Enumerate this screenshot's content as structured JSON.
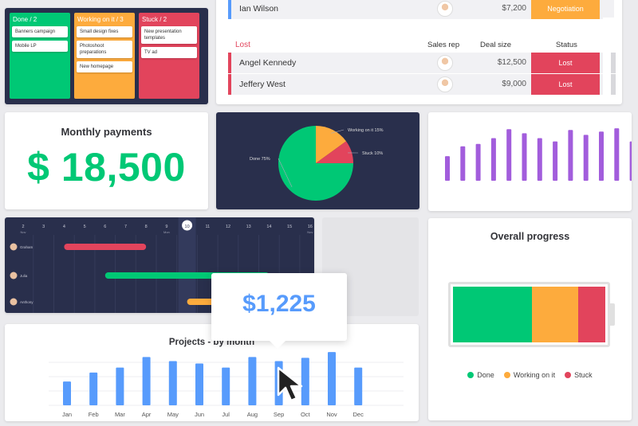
{
  "kanban": {
    "columns": [
      {
        "title": "Done / 2",
        "color": "#00c875",
        "items": [
          "Banners campaign",
          "Mobile LP"
        ]
      },
      {
        "title": "Working on it / 3",
        "color": "#fdab3d",
        "items": [
          "Small design fixes",
          "Photoshoot preparations",
          "New homepage"
        ]
      },
      {
        "title": "Stuck / 2",
        "color": "#e2445c",
        "items": [
          "New presentation templates",
          "TV ad"
        ]
      }
    ]
  },
  "deals": {
    "top_row": {
      "name": "Ian Wilson",
      "size": "$7,200",
      "status": "Negotiation",
      "status_color": "#fdab3d",
      "stripe": "#579bfc"
    },
    "group_label": "Lost",
    "headers": {
      "rep": "Sales rep",
      "size": "Deal size",
      "status": "Status"
    },
    "rows": [
      {
        "name": "Angel Kennedy",
        "size": "$12,500",
        "status": "Lost"
      },
      {
        "name": "Jeffery West",
        "size": "$9,000",
        "status": "Lost"
      }
    ]
  },
  "payments": {
    "title": "Monthly payments",
    "amount": "$ 18,500"
  },
  "pie": {
    "chart_data": {
      "type": "pie",
      "slices": [
        {
          "label": "Done 75%",
          "value": 75,
          "color": "#00c875"
        },
        {
          "label": "Working on it 15%",
          "value": 15,
          "color": "#fdab3d"
        },
        {
          "label": "Stuck 10%",
          "value": 10,
          "color": "#e2445c"
        }
      ]
    }
  },
  "purple_chart": {
    "chart_data": {
      "type": "bar",
      "values": [
        30,
        42,
        45,
        52,
        63,
        58,
        52,
        48,
        62,
        56,
        60,
        64,
        48
      ],
      "color": "#a25ddc",
      "ylim": [
        0,
        70
      ]
    }
  },
  "gantt": {
    "dates": [
      {
        "day": "2",
        "sub": "Nov"
      },
      {
        "day": "3",
        "sub": ""
      },
      {
        "day": "4",
        "sub": ""
      },
      {
        "day": "5",
        "sub": ""
      },
      {
        "day": "6",
        "sub": ""
      },
      {
        "day": "7",
        "sub": ""
      },
      {
        "day": "8",
        "sub": ""
      },
      {
        "day": "9",
        "sub": "Mon"
      },
      {
        "day": "10",
        "sub": ""
      },
      {
        "day": "11",
        "sub": ""
      },
      {
        "day": "12",
        "sub": ""
      },
      {
        "day": "13",
        "sub": ""
      },
      {
        "day": "14",
        "sub": ""
      },
      {
        "day": "15",
        "sub": ""
      },
      {
        "day": "16",
        "sub": "Nov"
      }
    ],
    "today_index": 8,
    "people": [
      {
        "name": "Graham",
        "color": "#e2445c",
        "start": 2,
        "end": 6
      },
      {
        "name": "Julia",
        "color": "#00c875",
        "start": 4,
        "end": 12
      },
      {
        "name": "Anthony",
        "color": "#fdab3d",
        "start": 8,
        "end": 10
      }
    ]
  },
  "progress": {
    "title": "Overall progress",
    "segments": [
      {
        "label": "Done",
        "value": 52,
        "color": "#00c875"
      },
      {
        "label": "Working on it",
        "value": 30,
        "color": "#fdab3d"
      },
      {
        "label": "Stuck",
        "value": 18,
        "color": "#e2445c"
      }
    ]
  },
  "projects": {
    "title": "Projects - by month",
    "chart_data": {
      "type": "bar",
      "categories": [
        "Jan",
        "Feb",
        "Mar",
        "Apr",
        "May",
        "Jun",
        "Jul",
        "Aug",
        "Sep",
        "Oct",
        "Nov",
        "Dec"
      ],
      "values": [
        29,
        40,
        46,
        59,
        54,
        51,
        46,
        59,
        54,
        58,
        65,
        46
      ],
      "color": "#579bfc",
      "ylim": [
        0,
        70
      ]
    }
  },
  "tooltip": {
    "value": "$1,225"
  }
}
